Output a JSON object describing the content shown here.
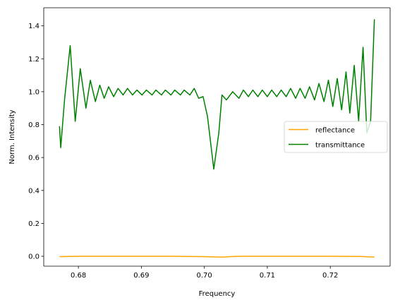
{
  "chart_data": {
    "type": "line",
    "title": "",
    "xlabel": "Frequency",
    "ylabel": "Norm. Intensity",
    "xlim": [
      0.6745,
      0.7295
    ],
    "ylim": [
      -0.06,
      1.51
    ],
    "xticks": [
      0.68,
      0.69,
      0.7,
      0.71,
      0.72
    ],
    "xtick_labels": [
      "0.68",
      "0.69",
      "0.70",
      "0.71",
      "0.72"
    ],
    "yticks": [
      0.0,
      0.2,
      0.4,
      0.6,
      0.8,
      1.0,
      1.2,
      1.4
    ],
    "ytick_labels": [
      "0.0",
      "0.2",
      "0.4",
      "0.6",
      "0.8",
      "1.0",
      "1.2",
      "1.4"
    ],
    "grid": false,
    "legend": {
      "position": "center-right"
    },
    "series": [
      {
        "name": "reflectance",
        "color": "#ffa500",
        "x": [
          0.677,
          0.68,
          0.685,
          0.69,
          0.695,
          0.7,
          0.702,
          0.703,
          0.704,
          0.706,
          0.71,
          0.715,
          0.72,
          0.725,
          0.726,
          0.727
        ],
        "y": [
          -0.002,
          0.0,
          0.0,
          0.0,
          0.0,
          -0.002,
          -0.004,
          -0.005,
          -0.002,
          0.0,
          0.0,
          0.0,
          0.0,
          -0.001,
          -0.003,
          -0.004
        ]
      },
      {
        "name": "transmittance",
        "color": "#008000",
        "x": [
          0.677,
          0.6772,
          0.6778,
          0.6787,
          0.6795,
          0.6803,
          0.6812,
          0.6819,
          0.6827,
          0.6834,
          0.6841,
          0.6848,
          0.6856,
          0.6863,
          0.6871,
          0.6878,
          0.6886,
          0.6893,
          0.6901,
          0.6908,
          0.6917,
          0.6923,
          0.6932,
          0.6938,
          0.6947,
          0.6953,
          0.6962,
          0.6968,
          0.6977,
          0.6984,
          0.6991,
          0.6998,
          0.7005,
          0.7015,
          0.7023,
          0.7028,
          0.7035,
          0.7045,
          0.7055,
          0.7062,
          0.707,
          0.7077,
          0.7085,
          0.7092,
          0.71,
          0.7107,
          0.7115,
          0.7122,
          0.713,
          0.7137,
          0.7145,
          0.7152,
          0.716,
          0.7167,
          0.7175,
          0.7182,
          0.719,
          0.7197,
          0.7204,
          0.7211,
          0.7218,
          0.7225,
          0.7231,
          0.7238,
          0.7245,
          0.7252,
          0.7258,
          0.7264,
          0.727
        ],
        "y": [
          0.79,
          0.66,
          0.95,
          1.28,
          0.82,
          1.14,
          0.9,
          1.07,
          0.94,
          1.04,
          0.96,
          1.03,
          0.97,
          1.02,
          0.98,
          1.02,
          0.98,
          1.01,
          0.98,
          1.01,
          0.98,
          1.01,
          0.98,
          1.01,
          0.98,
          1.01,
          0.98,
          1.01,
          0.98,
          1.02,
          0.96,
          0.97,
          0.85,
          0.53,
          0.75,
          0.98,
          0.95,
          1.0,
          0.96,
          1.01,
          0.97,
          1.01,
          0.97,
          1.01,
          0.97,
          1.01,
          0.97,
          1.01,
          0.97,
          1.02,
          0.96,
          1.02,
          0.96,
          1.03,
          0.95,
          1.05,
          0.94,
          1.07,
          0.91,
          1.08,
          0.89,
          1.12,
          0.87,
          1.16,
          0.82,
          1.27,
          0.75,
          0.82,
          1.44
        ]
      }
    ]
  }
}
